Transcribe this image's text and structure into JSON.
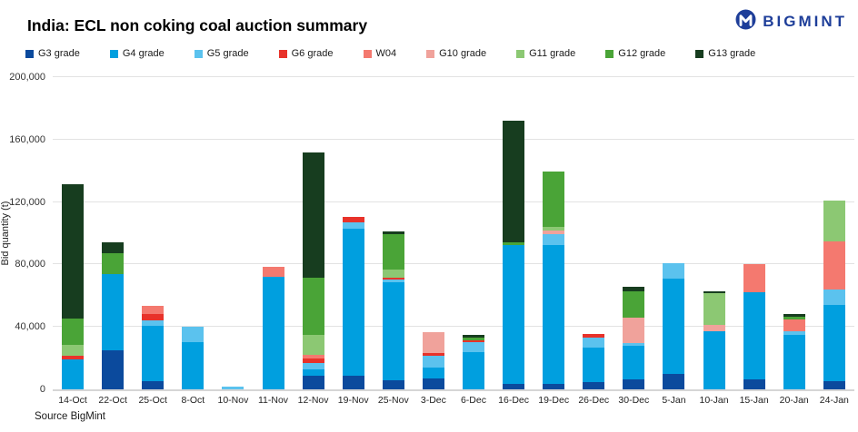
{
  "header": {
    "title": "India: ECL non coking coal auction summary",
    "brand": "BIGMINT",
    "brand_color": "#1E3E99"
  },
  "source": "Source BigMint",
  "chart_data": {
    "type": "bar",
    "stacked": true,
    "title": "India: ECL non coking coal auction summary",
    "xlabel": "",
    "ylabel": "Bid quantity (t)",
    "ylim": [
      0,
      200000
    ],
    "y_tick_values": [
      0,
      40000,
      80000,
      120000,
      160000,
      200000
    ],
    "y_tick_labels": [
      "0",
      "40,000",
      "80,000",
      "120,000",
      "160,000",
      "200,000"
    ],
    "grid": true,
    "legend_position": "top",
    "categories": [
      "14-Oct",
      "22-Oct",
      "25-Oct",
      "8-Oct",
      "10-Nov",
      "11-Nov",
      "12-Nov",
      "19-Nov",
      "25-Nov",
      "3-Dec",
      "6-Dec",
      "16-Dec",
      "19-Dec",
      "26-Dec",
      "30-Dec",
      "5-Jan",
      "10-Jan",
      "15-Jan",
      "20-Jan",
      "24-Jan"
    ],
    "series": [
      {
        "name": "G3 grade",
        "color": "#0B4A9D",
        "values": [
          0,
          25000,
          5500,
          0,
          0,
          0,
          9000,
          9000,
          6000,
          7000,
          0,
          3500,
          3500,
          4500,
          6500,
          10000,
          0,
          6500,
          0,
          5000
        ]
      },
      {
        "name": "G4 grade",
        "color": "#009FDF",
        "values": [
          19000,
          49000,
          35000,
          30000,
          0,
          72000,
          4000,
          94000,
          62500,
          7000,
          24000,
          89000,
          89000,
          22500,
          21500,
          61000,
          37500,
          55500,
          35000,
          49000
        ]
      },
      {
        "name": "G5 grade",
        "color": "#5BC2EE",
        "values": [
          0,
          0,
          3500,
          10000,
          1500,
          0,
          4000,
          4000,
          2000,
          7500,
          6000,
          0,
          7000,
          6000,
          1500,
          10000,
          0,
          0,
          2500,
          10000
        ]
      },
      {
        "name": "G6 grade",
        "color": "#E8322A",
        "values": [
          2500,
          0,
          4500,
          0,
          0,
          0,
          3000,
          3500,
          1000,
          2000,
          1500,
          0,
          0,
          2500,
          0,
          0,
          0,
          0,
          0,
          0
        ]
      },
      {
        "name": "W04",
        "color": "#F4796F",
        "values": [
          0,
          0,
          5000,
          0,
          0,
          6500,
          2000,
          0,
          0,
          0,
          0,
          0,
          0,
          0,
          0,
          0,
          0,
          18000,
          7000,
          31000
        ]
      },
      {
        "name": "G10 grade",
        "color": "#F0A29B",
        "values": [
          0,
          0,
          0,
          0,
          0,
          0,
          0,
          0,
          0,
          13000,
          0,
          0,
          2000,
          0,
          16500,
          0,
          3500,
          0,
          0,
          0
        ]
      },
      {
        "name": "G11 grade",
        "color": "#8CC873",
        "values": [
          7000,
          0,
          0,
          0,
          0,
          0,
          13000,
          0,
          5000,
          0,
          0,
          0,
          2500,
          0,
          0,
          0,
          20500,
          0,
          0,
          26000
        ]
      },
      {
        "name": "G12 grade",
        "color": "#4AA437",
        "values": [
          17000,
          13500,
          0,
          0,
          0,
          0,
          36500,
          0,
          23000,
          0,
          1500,
          1500,
          35500,
          0,
          17000,
          0,
          0,
          0,
          2000,
          0
        ]
      },
      {
        "name": "G13 grade",
        "color": "#173D1F",
        "values": [
          86000,
          6500,
          0,
          0,
          0,
          0,
          80500,
          0,
          1500,
          0,
          2000,
          78000,
          0,
          0,
          2500,
          0,
          1500,
          0,
          2000,
          0
        ]
      }
    ]
  }
}
